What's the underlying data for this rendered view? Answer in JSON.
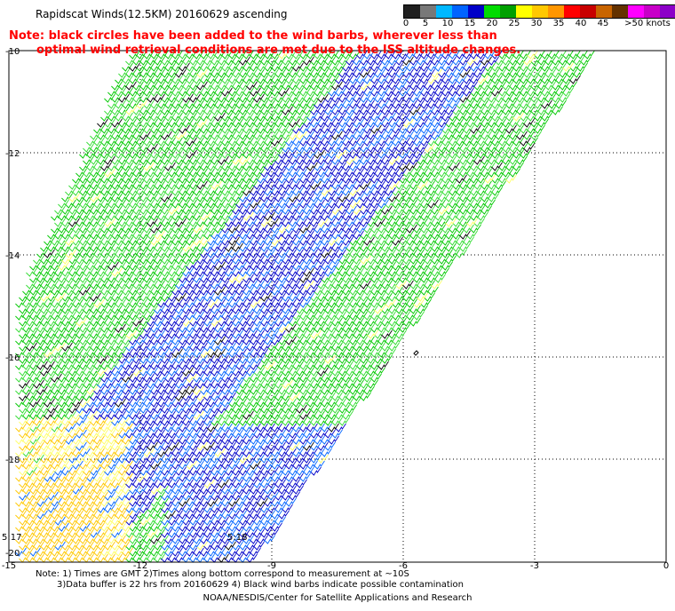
{
  "title": "Rapidscat Winds(12.5KM) 20160629 ascending",
  "legend": {
    "colors": [
      "#202020",
      "#787878",
      "#00b8ff",
      "#0064ff",
      "#0000c8",
      "#00dc00",
      "#00a000",
      "#ffff00",
      "#ffc800",
      "#ff9600",
      "#ff0000",
      "#c80000",
      "#c86400",
      "#643200",
      "#ff00ff",
      "#c800c8",
      "#8c00c8",
      "#4b0096"
    ],
    "labels": [
      "0",
      "5",
      "10",
      "15",
      "20",
      "25",
      "30",
      "35",
      "40",
      "45",
      ">50 knots"
    ]
  },
  "note": {
    "line1": "Note: black circles have been added to the wind barbs, wherever less than",
    "line2": "optimal wind retrieval conditions are met due to the ISS altitude changes."
  },
  "axes": {
    "x_labels": [
      "-15",
      "-12",
      "-9",
      "-6",
      "-3",
      "0"
    ],
    "y_labels": [
      "-10",
      "-12",
      "-14",
      "-16",
      "-18",
      "-20"
    ]
  },
  "time_labels": [
    "5:17",
    "5:18"
  ],
  "swath_colors": {
    "blue": "#0000c8",
    "light_blue": "#0064ff",
    "green": "#00c800",
    "light_green": "#32dc32",
    "yellow": "#ffff66",
    "orange": "#ffc800",
    "black": "#000000"
  },
  "footnote": {
    "line1": "Note: 1) Times are GMT 2)Times along bottom correspond to measurement at ~10S",
    "line2": "3)Data buffer is 22 hrs from 20160629 4) Black wind barbs indicate possible contamination"
  },
  "credit": "NOAA/NESDIS/Center for Satellite Applications and Research"
}
